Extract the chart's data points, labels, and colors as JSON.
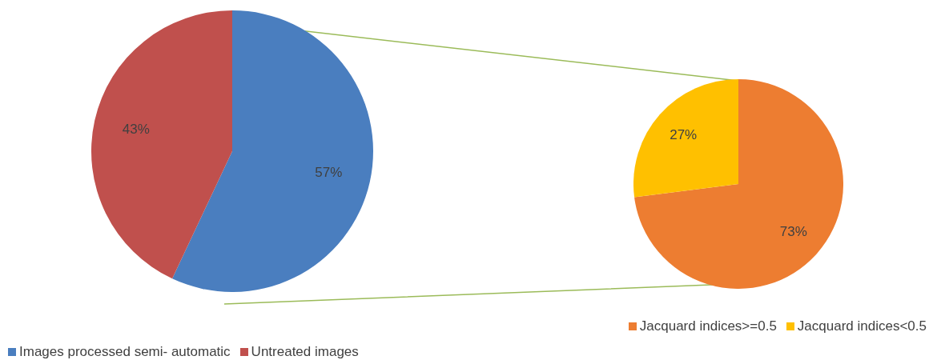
{
  "chart_data": [
    {
      "type": "pie",
      "categories": [
        "Images processed semi- automatic",
        "Untreated images"
      ],
      "values": [
        57,
        43
      ],
      "value_labels": [
        "57%",
        "43%"
      ],
      "colors": [
        "#4a7ebf",
        "#c0504d"
      ],
      "legend": "bottom left"
    },
    {
      "type": "pie",
      "categories": [
        "Jacquard indices>=0.5",
        "Jacquard indices<0.5"
      ],
      "values": [
        73,
        27
      ],
      "value_labels": [
        "73%",
        "27%"
      ],
      "colors": [
        "#ed7d31",
        "#ffc000"
      ],
      "legend": "bottom right"
    }
  ]
}
